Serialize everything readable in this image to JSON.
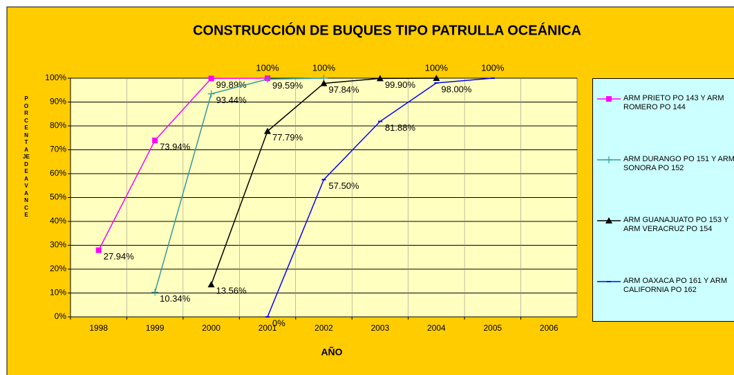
{
  "chart_data": {
    "type": "line",
    "title": "CONSTRUCCIÓN DE BUQUES TIPO PATRULLA OCEÁNICA",
    "x_label": "AÑO",
    "y_label": "PORCENTAJE DE AVANCE",
    "categories": [
      "1998",
      "1999",
      "2000",
      "2001",
      "2002",
      "2003",
      "2004",
      "2005",
      "2006"
    ],
    "ylim": [
      0,
      100
    ],
    "yticks": [
      {
        "value": 0,
        "label": "0%"
      },
      {
        "value": 10,
        "label": "10%"
      },
      {
        "value": 20,
        "label": "20%"
      },
      {
        "value": 30,
        "label": "30%"
      },
      {
        "value": 40,
        "label": "40%"
      },
      {
        "value": 50,
        "label": "50%"
      },
      {
        "value": 60,
        "label": "60%"
      },
      {
        "value": 70,
        "label": "70%"
      },
      {
        "value": 80,
        "label": "80%"
      },
      {
        "value": 90,
        "label": "90%"
      },
      {
        "value": 100,
        "label": "100%"
      }
    ],
    "grid": true,
    "legend": "right",
    "series": [
      {
        "name": "ARM PRIETO PO 143  Y ARM ROMERO PO 144",
        "color": "#FF00FF",
        "marker": "square",
        "values": [
          27.94,
          73.94,
          99.89,
          100,
          null,
          null,
          null,
          null,
          null
        ],
        "value_labels": [
          "27.94%",
          "73.94%",
          "99.89%",
          "100%",
          null,
          null,
          null,
          null,
          null
        ]
      },
      {
        "name": "ARM DURANGO PO 151 Y ARM SONORA PO 152",
        "color": "#339999",
        "marker": "plus",
        "values": [
          null,
          10.34,
          93.44,
          99.59,
          100,
          null,
          null,
          null,
          null
        ],
        "value_labels": [
          null,
          "10.34%",
          "93.44%",
          "99.59%",
          "100%",
          null,
          null,
          null,
          null
        ]
      },
      {
        "name": "ARM  GUANAJUATO PO 153 Y ARM VERACRUZ PO 154",
        "color": "#000000",
        "marker": "triangle",
        "values": [
          null,
          null,
          13.56,
          77.79,
          97.84,
          99.9,
          100,
          null,
          null
        ],
        "value_labels": [
          null,
          null,
          "13.56%",
          "77.79%",
          "97.84%",
          "99.90%",
          "100%",
          null,
          null
        ]
      },
      {
        "name": "ARM OAXACA PO 161 Y ARM CALIFORNIA PO 162",
        "color": "#0000FF",
        "marker": "dash",
        "values": [
          null,
          null,
          null,
          0,
          57.5,
          81.88,
          98.0,
          100,
          null
        ],
        "value_labels": [
          null,
          null,
          null,
          "0%",
          "57.50%",
          "81.88%",
          "98.00%",
          "100%",
          null
        ]
      }
    ]
  }
}
